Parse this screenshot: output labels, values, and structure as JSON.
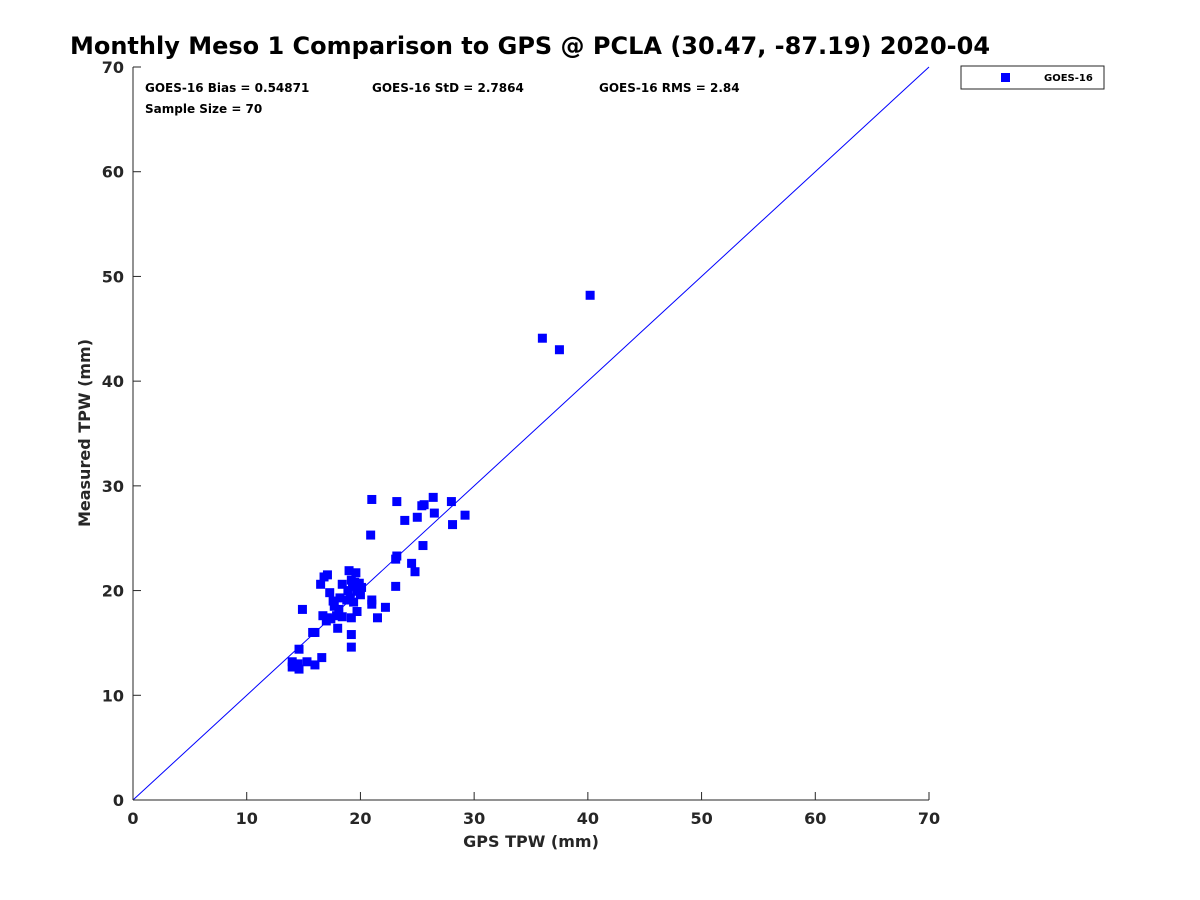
{
  "chart_data": {
    "type": "scatter",
    "title": "Monthly Meso 1 Comparison to GPS @ PCLA (30.47, -87.19) 2020-04",
    "xlabel": "GPS TPW (mm)",
    "ylabel": "Measured TPW (mm)",
    "xlim": [
      0,
      70
    ],
    "ylim": [
      0,
      70
    ],
    "xticks": [
      "0",
      "10",
      "20",
      "30",
      "40",
      "50",
      "60",
      "70"
    ],
    "yticks": [
      "0",
      "10",
      "20",
      "30",
      "40",
      "50",
      "60",
      "70"
    ],
    "grid": false,
    "legend_position": "outside-top-right",
    "marker": "square",
    "marker_color": "#0000ff",
    "reference_line": {
      "type": "one-to-one",
      "color": "#0000ff",
      "from": [
        0,
        0
      ],
      "to": [
        70,
        70
      ]
    },
    "annotations": {
      "bias": "GOES-16 Bias = 0.54871",
      "std": "GOES-16 StD = 2.7864",
      "rms": "GOES-16 RMS = 2.84",
      "sample_size": "Sample Size = 70"
    },
    "series": [
      {
        "name": "GOES-16",
        "points": [
          [
            40.2,
            48.2
          ],
          [
            36.0,
            44.1
          ],
          [
            37.5,
            43.0
          ],
          [
            21.0,
            28.7
          ],
          [
            23.2,
            28.5
          ],
          [
            26.4,
            28.9
          ],
          [
            28.0,
            28.5
          ],
          [
            25.6,
            28.2
          ],
          [
            25.4,
            28.1
          ],
          [
            26.5,
            27.4
          ],
          [
            29.2,
            27.2
          ],
          [
            25.0,
            27.0
          ],
          [
            23.9,
            26.7
          ],
          [
            28.1,
            26.3
          ],
          [
            20.9,
            25.3
          ],
          [
            25.5,
            24.3
          ],
          [
            23.2,
            23.3
          ],
          [
            23.1,
            23.0
          ],
          [
            24.5,
            22.6
          ],
          [
            24.8,
            21.8
          ],
          [
            19.0,
            21.9
          ],
          [
            19.6,
            21.7
          ],
          [
            17.1,
            21.5
          ],
          [
            16.8,
            21.3
          ],
          [
            19.2,
            21.0
          ],
          [
            19.5,
            20.8
          ],
          [
            19.9,
            20.7
          ],
          [
            16.5,
            20.6
          ],
          [
            18.4,
            20.6
          ],
          [
            19.3,
            20.4
          ],
          [
            23.1,
            20.4
          ],
          [
            18.9,
            20.0
          ],
          [
            19.7,
            20.0
          ],
          [
            17.3,
            19.8
          ],
          [
            20.0,
            19.6
          ],
          [
            19.1,
            19.3
          ],
          [
            18.8,
            19.1
          ],
          [
            21.0,
            19.1
          ],
          [
            17.6,
            19.0
          ],
          [
            19.4,
            18.9
          ],
          [
            21.0,
            18.7
          ],
          [
            17.7,
            18.5
          ],
          [
            22.2,
            18.4
          ],
          [
            14.9,
            18.2
          ],
          [
            18.1,
            18.2
          ],
          [
            19.7,
            18.0
          ],
          [
            16.7,
            17.6
          ],
          [
            17.9,
            17.6
          ],
          [
            18.4,
            17.5
          ],
          [
            19.2,
            17.4
          ],
          [
            21.5,
            17.4
          ],
          [
            17.1,
            17.4
          ],
          [
            17.4,
            17.3
          ],
          [
            17.0,
            17.1
          ],
          [
            18.0,
            16.4
          ],
          [
            16.0,
            16.0
          ],
          [
            19.2,
            15.8
          ],
          [
            19.2,
            14.6
          ],
          [
            14.6,
            14.4
          ],
          [
            16.6,
            13.6
          ],
          [
            15.3,
            13.2
          ],
          [
            14.0,
            13.2
          ],
          [
            14.5,
            13.0
          ],
          [
            16.0,
            12.9
          ],
          [
            14.0,
            12.7
          ],
          [
            14.6,
            12.5
          ],
          [
            14.1,
            12.9
          ],
          [
            15.8,
            16.0
          ],
          [
            18.2,
            19.3
          ],
          [
            20.1,
            20.3
          ]
        ]
      }
    ]
  },
  "legend": {
    "entries": [
      {
        "label": "GOES-16",
        "color": "#0000ff",
        "marker": "square"
      }
    ]
  }
}
